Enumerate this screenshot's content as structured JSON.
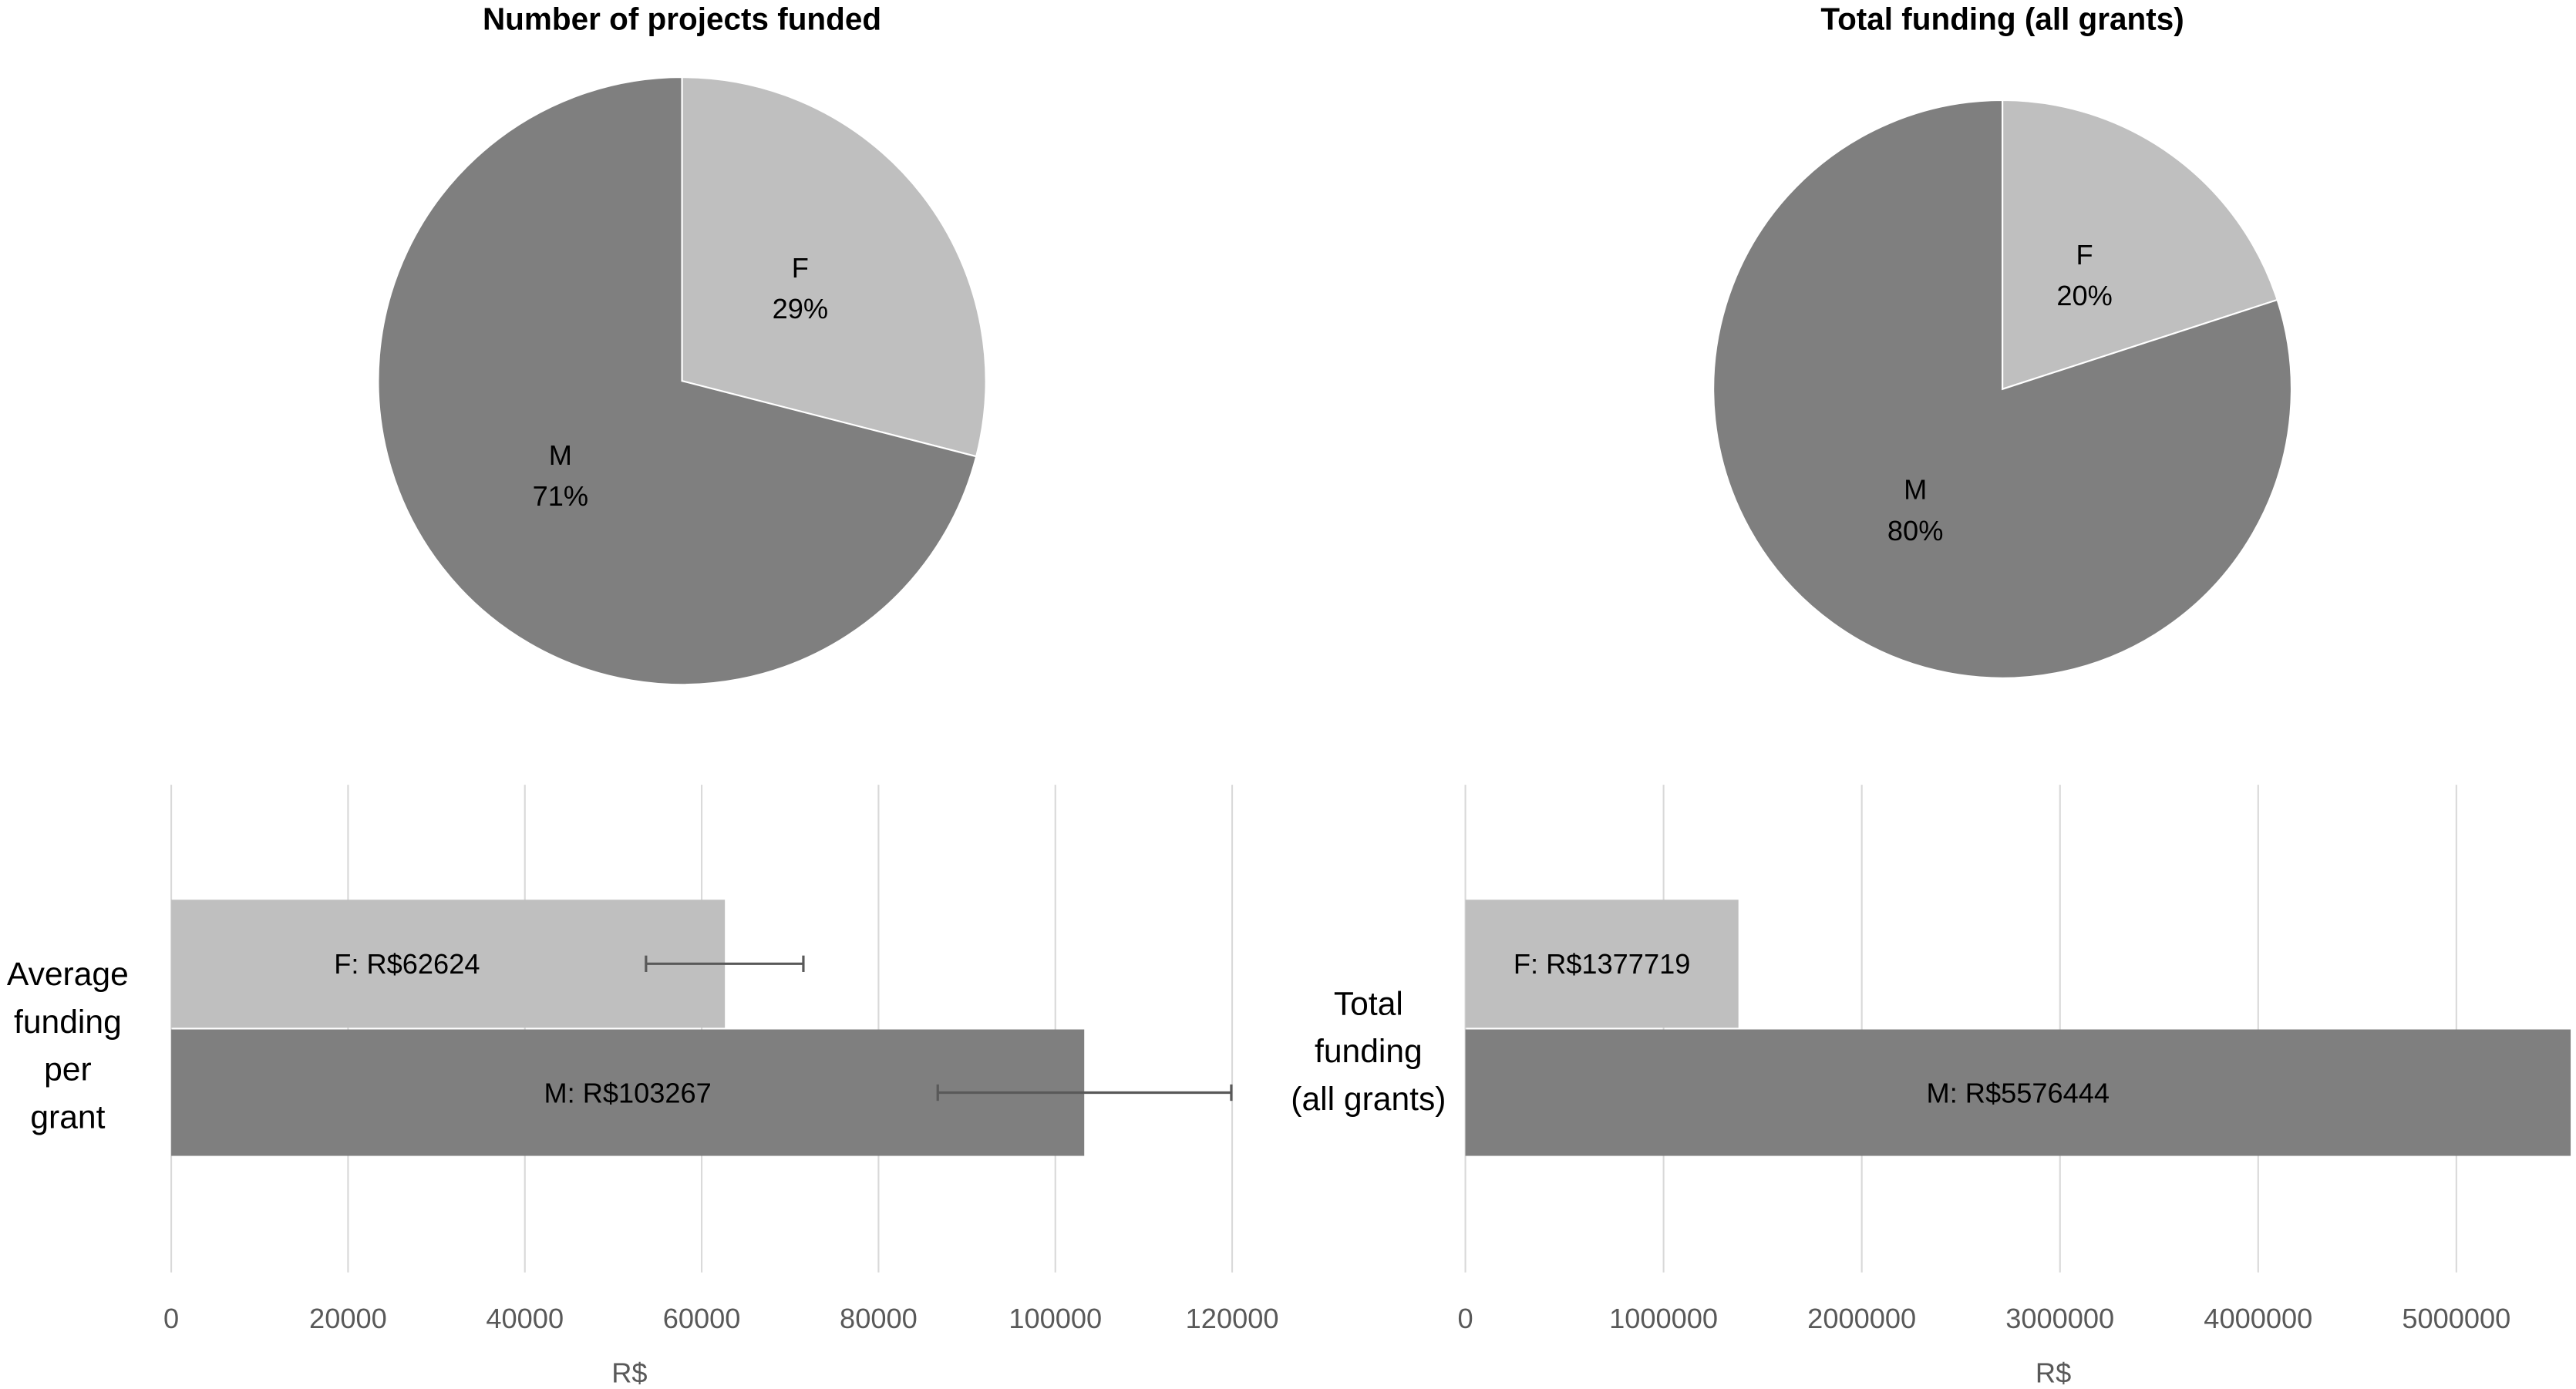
{
  "colors": {
    "female": "#bfbfbf",
    "male": "#7f7f7f",
    "grid": "#d9d9d9",
    "errorbar": "#595959"
  },
  "chart_data": [
    {
      "type": "pie",
      "title": "Number of projects funded",
      "slices": [
        {
          "label": "F",
          "value": 29,
          "text": "29%"
        },
        {
          "label": "M",
          "value": 71,
          "text": "71%"
        }
      ]
    },
    {
      "type": "pie",
      "title": "Total funding (all grants)",
      "slices": [
        {
          "label": "F",
          "value": 20,
          "text": "20%"
        },
        {
          "label": "M",
          "value": 80,
          "text": "80%"
        }
      ]
    },
    {
      "type": "bar",
      "orientation": "horizontal",
      "category_label": [
        "Average",
        "funding",
        "per",
        "grant"
      ],
      "xlabel": "R$",
      "xlim": [
        0,
        120000
      ],
      "ticks": [
        "0",
        "20000",
        "40000",
        "60000",
        "80000",
        "100000",
        "120000"
      ],
      "tick_values": [
        0,
        20000,
        40000,
        60000,
        80000,
        100000,
        120000
      ],
      "grid": true,
      "bars": [
        {
          "group": "F",
          "value": 62624,
          "label": "F: R$62624",
          "error": [
            53700,
            71500
          ]
        },
        {
          "group": "M",
          "value": 103267,
          "label": "M: R$103267",
          "error": [
            86700,
            119900
          ]
        }
      ]
    },
    {
      "type": "bar",
      "orientation": "horizontal",
      "category_label": [
        "Total",
        "funding",
        "(all grants)"
      ],
      "xlabel": "R$",
      "xlim": [
        0,
        5576444
      ],
      "ticks": [
        "0",
        "1000000",
        "2000000",
        "3000000",
        "4000000",
        "5000000"
      ],
      "tick_values": [
        0,
        1000000,
        2000000,
        3000000,
        4000000,
        5000000
      ],
      "grid": true,
      "bars": [
        {
          "group": "F",
          "value": 1377719,
          "label": "F: R$1377719"
        },
        {
          "group": "M",
          "value": 5576444,
          "label": "M: R$5576444"
        }
      ]
    }
  ]
}
